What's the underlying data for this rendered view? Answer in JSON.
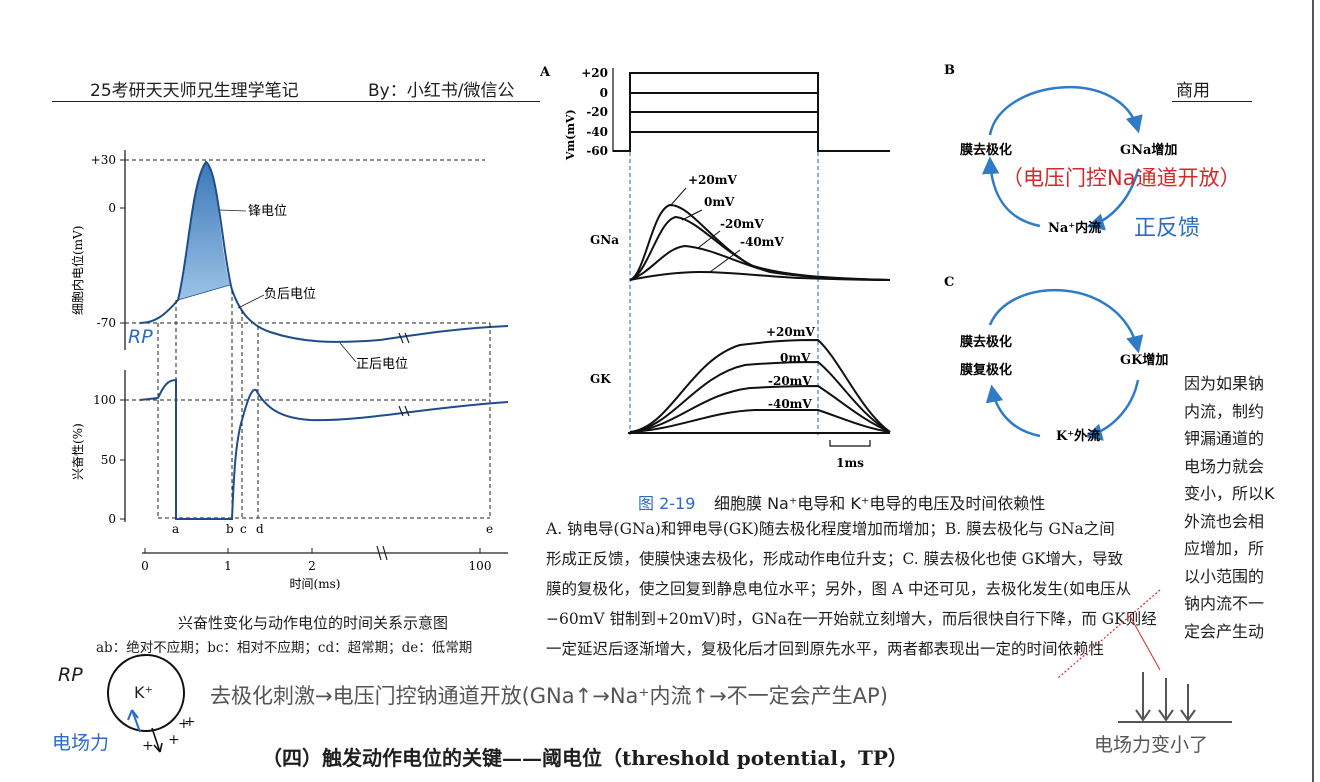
{
  "header": {
    "title": "25考研天天师兄生理学笔记",
    "by": "By：小红书/微信公",
    "right_label": "商用"
  },
  "left_figure": {
    "top_plot": {
      "ylabel": "细胞内电位(mV)",
      "yticks": [
        "+30",
        "0",
        "-70"
      ],
      "spike_label": "锋电位",
      "neg_after_label": "负后电位",
      "pos_after_label": "正后电位"
    },
    "bottom_plot": {
      "ylabel": "兴奋性(%)",
      "yticks": [
        "100",
        "50",
        "0"
      ],
      "period_letters": [
        "a",
        "b",
        "c",
        "d",
        "e"
      ]
    },
    "time_axis": {
      "ticks": [
        "0",
        "1",
        "2",
        "100"
      ],
      "label": "时间(ms)"
    },
    "caption": "兴奋性变化与动作电位的时间关系示意图",
    "legend": "ab：绝对不应期；bc：相对不应期；cd：超常期；de：低常期"
  },
  "figure_2_19": {
    "panel_a_label": "A",
    "vm_axis_label": "Vm(mV)",
    "vm_ticks": [
      "+20",
      "0",
      "-20",
      "-40",
      "-60"
    ],
    "gna_label": "GNa",
    "gna_curve_labels": [
      "+20mV",
      "0mV",
      "-20mV",
      "-40mV"
    ],
    "gk_label": "GK",
    "gk_curve_labels": [
      "+20mV",
      "0mV",
      "-20mV",
      "-40mV"
    ],
    "scale_bar_label": "1ms",
    "panel_b": {
      "label": "B",
      "left": "膜去极化",
      "right": "GNa增加",
      "bottom": "Na⁺内流"
    },
    "panel_c": {
      "label": "C",
      "left_1": "膜去极化",
      "left_2": "膜复极化",
      "right": "GK增加",
      "bottom": "K⁺外流"
    },
    "caption_number": "图 2-19",
    "caption_title": "细胞膜 Na⁺电导和 K⁺电导的电压及时间依赖性",
    "caption_lines": [
      "A. 钠电导(GNa)和钾电导(GK)随去极化程度增加而增加；B. 膜去极化与 GNa之间",
      "形成正反馈，使膜快速去极化，形成动作电位升支；C. 膜去极化也使 GK增大，导致",
      "膜的复极化，使之回复到静息电位水平；另外，图 A 中还可见，去极化发生(如电压从",
      "−60mV 钳制到+20mV)时，GNa在一开始就立刻增大，而后很快自行下降，而 GK则经",
      "一定延迟后逐渐增大，复极化后才回到原先水平，两者都表现出一定的时间依赖性"
    ]
  },
  "annotations": {
    "rp_top": "RP",
    "voltage_gate_note": "（电压门控Na通道开放）",
    "positive_feedback": "正反馈",
    "side_note_lines": [
      "因为如果钠",
      "内流，制约",
      "钾漏通道的",
      "电场力就会",
      "变小，所以K",
      "外流也会相",
      "应增加，所",
      "以小范围的",
      "钠内流不一",
      "定会产生动"
    ],
    "rp_bottom": "RP",
    "k_ion": "K⁺",
    "electric_force": "电场力",
    "chain": "去极化刺激→电压门控钠通道开放(GNa↑→Na⁺内流↑→不一定会产生AP)",
    "force_smaller": "电场力变小了"
  },
  "section_heading": "（四）触发动作电位的关键——阈电位（threshold potential，TP）"
}
